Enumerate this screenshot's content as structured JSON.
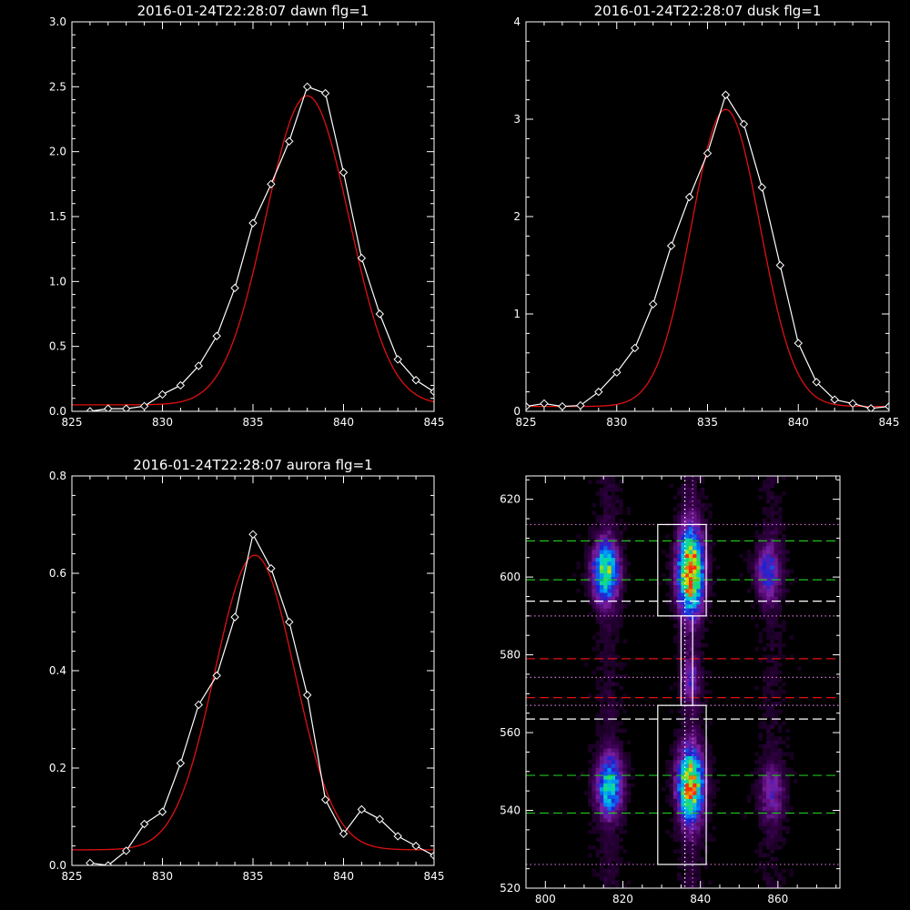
{
  "chart_data": [
    {
      "type": "line",
      "title": "2016-01-24T22:28:07 dawn flg=1",
      "xlim": [
        825,
        845
      ],
      "ylim": [
        0,
        3.0
      ],
      "xticks": [
        825,
        830,
        835,
        840,
        845
      ],
      "xtick_labels": [
        "825",
        "830",
        "835",
        "840",
        "845"
      ],
      "yticks": [
        0,
        0.5,
        1.0,
        1.5,
        2.0,
        2.5,
        3.0
      ],
      "ytick_labels": [
        "0.0",
        "0.5",
        "1.0",
        "1.5",
        "2.0",
        "2.5",
        "3.0"
      ],
      "series": [
        {
          "color": "#ffffff",
          "marker": "diamond",
          "x": [
            826,
            827,
            828,
            829,
            830,
            831,
            832,
            833,
            834,
            835,
            836,
            837,
            838,
            839,
            840,
            841,
            842,
            843,
            844,
            845
          ],
          "y": [
            0.0,
            0.02,
            0.02,
            0.04,
            0.13,
            0.2,
            0.35,
            0.58,
            0.95,
            1.45,
            1.75,
            2.08,
            2.5,
            2.45,
            1.84,
            1.18,
            0.75,
            0.4,
            0.24,
            0.15
          ]
        },
        {
          "color": "#e01010",
          "fit": {
            "type": "gaussian",
            "peak": 2.38,
            "center": 838.0,
            "sigma": 2.3,
            "baseline": 0.05
          }
        }
      ]
    },
    {
      "type": "line",
      "title": "2016-01-24T22:28:07 dusk flg=1",
      "xlim": [
        825,
        845
      ],
      "ylim": [
        0,
        4
      ],
      "xticks": [
        825,
        830,
        835,
        840,
        845
      ],
      "xtick_labels": [
        "825",
        "830",
        "835",
        "840",
        "845"
      ],
      "yticks": [
        0,
        1,
        2,
        3,
        4
      ],
      "ytick_labels": [
        "0",
        "1",
        "2",
        "3",
        "4"
      ],
      "series": [
        {
          "color": "#ffffff",
          "marker": "diamond",
          "x": [
            825,
            826,
            827,
            828,
            829,
            830,
            831,
            832,
            833,
            834,
            835,
            836,
            837,
            838,
            839,
            840,
            841,
            842,
            843,
            844,
            845
          ],
          "y": [
            0.05,
            0.08,
            0.05,
            0.06,
            0.2,
            0.4,
            0.65,
            1.1,
            1.7,
            2.2,
            2.65,
            3.25,
            2.95,
            2.3,
            1.5,
            0.7,
            0.3,
            0.12,
            0.08,
            0.03,
            0.05
          ]
        },
        {
          "color": "#e01010",
          "fit": {
            "type": "gaussian",
            "peak": 3.05,
            "center": 836.0,
            "sigma": 1.9,
            "baseline": 0.05
          }
        }
      ]
    },
    {
      "type": "line",
      "title": "2016-01-24T22:28:07 aurora flg=1",
      "xlim": [
        825,
        845
      ],
      "ylim": [
        0,
        0.8
      ],
      "xticks": [
        825,
        830,
        835,
        840,
        845
      ],
      "xtick_labels": [
        "825",
        "830",
        "835",
        "840",
        "845"
      ],
      "yticks": [
        0,
        0.2,
        0.4,
        0.6,
        0.8
      ],
      "ytick_labels": [
        "0.0",
        "0.2",
        "0.4",
        "0.6",
        "0.8"
      ],
      "series": [
        {
          "color": "#ffffff",
          "marker": "diamond",
          "x": [
            826,
            827,
            828,
            829,
            830,
            831,
            832,
            833,
            834,
            835,
            836,
            837,
            838,
            839,
            840,
            841,
            842,
            843,
            844,
            845
          ],
          "y": [
            0.005,
            0.0,
            0.03,
            0.085,
            0.11,
            0.21,
            0.33,
            0.39,
            0.51,
            0.68,
            0.61,
            0.5,
            0.35,
            0.135,
            0.065,
            0.115,
            0.095,
            0.06,
            0.04,
            0.02
          ]
        },
        {
          "color": "#e01010",
          "fit": {
            "type": "gaussian",
            "peak": 0.605,
            "center": 835.1,
            "sigma": 2.2,
            "baseline": 0.032
          }
        }
      ]
    },
    {
      "type": "heatmap",
      "xlim": [
        795,
        876
      ],
      "ylim": [
        520,
        626
      ],
      "xticks": [
        800,
        820,
        840,
        860
      ],
      "xtick_labels": [
        "800",
        "820",
        "840",
        "860"
      ],
      "yticks": [
        520,
        540,
        560,
        580,
        600,
        620
      ],
      "ytick_labels": [
        "520",
        "540",
        "560",
        "580",
        "600",
        "620"
      ],
      "colormap": [
        "#000000",
        "#3a0050",
        "#7a1ea0",
        "#2020d0",
        "#0080ff",
        "#00d0d0",
        "#20e060",
        "#d0e000",
        "#ff3000"
      ],
      "blobs": [
        {
          "x": 815,
          "y": 601,
          "sx": 2.2,
          "sy": 5,
          "amp": 0.72
        },
        {
          "x": 816,
          "y": 546,
          "sx": 2.2,
          "sy": 5,
          "amp": 0.62
        },
        {
          "x": 837,
          "y": 601,
          "sx": 2.2,
          "sy": 7,
          "amp": 1.0
        },
        {
          "x": 837,
          "y": 546,
          "sx": 2.2,
          "sy": 6,
          "amp": 0.95
        },
        {
          "x": 837,
          "y": 573,
          "sx": 1.5,
          "sy": 4,
          "amp": 0.22
        },
        {
          "x": 857,
          "y": 601,
          "sx": 2.2,
          "sy": 5,
          "amp": 0.32
        },
        {
          "x": 858,
          "y": 544,
          "sx": 2.2,
          "sy": 5,
          "amp": 0.22
        }
      ],
      "hlines": [
        {
          "y": 613.5,
          "color": "#d070d0",
          "style": "dotted"
        },
        {
          "y": 609.3,
          "color": "#20c020",
          "style": "dashed"
        },
        {
          "y": 599.3,
          "color": "#20c020",
          "style": "dashed"
        },
        {
          "y": 593.8,
          "color": "#ffffff",
          "style": "dashed"
        },
        {
          "y": 590.0,
          "color": "#d070d0",
          "style": "dotted"
        },
        {
          "y": 579.0,
          "color": "#e01010",
          "style": "dashed"
        },
        {
          "y": 574.2,
          "color": "#d070d0",
          "style": "dotted"
        },
        {
          "y": 569.0,
          "color": "#e01010",
          "style": "dashed"
        },
        {
          "y": 567.0,
          "color": "#d070d0",
          "style": "dotted"
        },
        {
          "y": 563.5,
          "color": "#ffffff",
          "style": "dashed"
        },
        {
          "y": 549.0,
          "color": "#20c020",
          "style": "dashed"
        },
        {
          "y": 539.3,
          "color": "#20c020",
          "style": "dashed"
        },
        {
          "y": 526.1,
          "color": "#d070d0",
          "style": "dotted"
        }
      ],
      "vlines": [
        {
          "x": 836.0,
          "color": "#ffffff",
          "style": "dotted"
        },
        {
          "x": 838.0,
          "color": "#d070d0",
          "style": "dotted"
        }
      ],
      "boxes": [
        {
          "x0": 829,
          "x1": 841.5,
          "y0": 590.0,
          "y1": 613.5
        },
        {
          "x0": 829,
          "x1": 841.5,
          "y0": 526.1,
          "y1": 567.0
        },
        {
          "x0": 835.0,
          "x1": 838.0,
          "y0": 567.0,
          "y1": 590.0
        }
      ]
    }
  ]
}
